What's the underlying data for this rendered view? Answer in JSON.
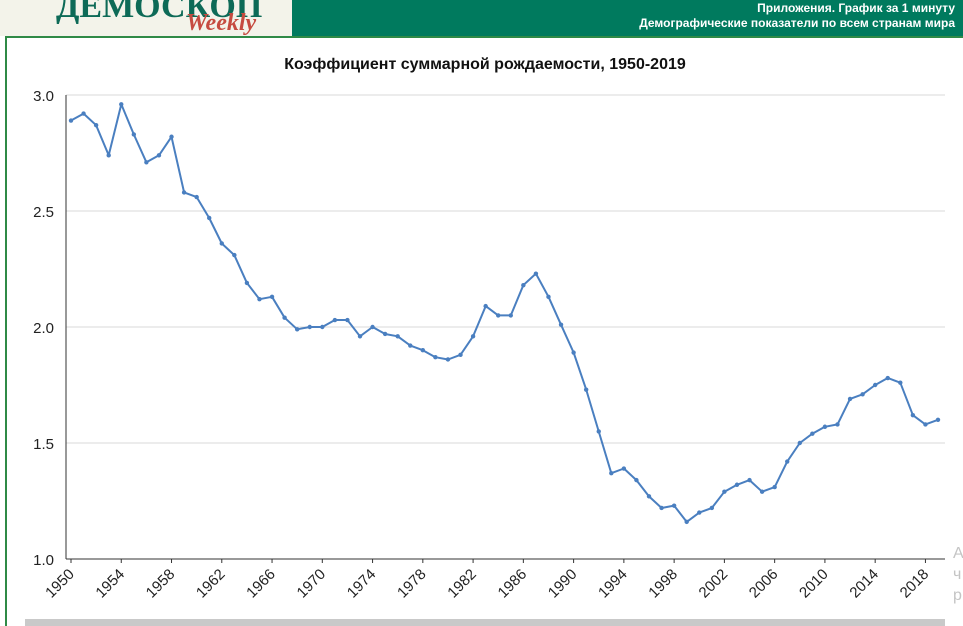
{
  "header": {
    "logo_main": "ДЕМОСКОП",
    "logo_sub": "Weekly",
    "line1": "Приложения. График за 1 минуту",
    "line2": "Демографические показатели по всем странам мира"
  },
  "edge_text": [
    "А",
    "ч",
    "р"
  ],
  "colors": {
    "header_bg": "#007a5e",
    "line": "#4a7fc0",
    "frame_border": "#2f8a46"
  },
  "chart_data": {
    "type": "line",
    "title": "Коэффициент суммарной рождаемости, 1950-2019",
    "xlabel": "",
    "ylabel": "",
    "ylim": [
      1.0,
      3.0
    ],
    "y_ticks": [
      "1.0",
      "1.5",
      "2.0",
      "2.5",
      "3.0"
    ],
    "x_ticks": [
      "1950",
      "1954",
      "1958",
      "1962",
      "1966",
      "1970",
      "1974",
      "1978",
      "1982",
      "1986",
      "1990",
      "1994",
      "1998",
      "2002",
      "2006",
      "2010",
      "2014",
      "2018"
    ],
    "grid": true,
    "legend": "none",
    "x": [
      1950,
      1951,
      1952,
      1953,
      1954,
      1955,
      1956,
      1957,
      1958,
      1959,
      1960,
      1961,
      1962,
      1963,
      1964,
      1965,
      1966,
      1967,
      1968,
      1969,
      1970,
      1971,
      1972,
      1973,
      1974,
      1975,
      1976,
      1977,
      1978,
      1979,
      1980,
      1981,
      1982,
      1983,
      1984,
      1985,
      1986,
      1987,
      1988,
      1989,
      1990,
      1991,
      1992,
      1993,
      1994,
      1995,
      1996,
      1997,
      1998,
      1999,
      2000,
      2001,
      2002,
      2003,
      2004,
      2005,
      2006,
      2007,
      2008,
      2009,
      2010,
      2011,
      2012,
      2013,
      2014,
      2015,
      2016,
      2017,
      2018,
      2019
    ],
    "values": [
      2.89,
      2.92,
      2.87,
      2.74,
      2.96,
      2.83,
      2.71,
      2.74,
      2.82,
      2.58,
      2.56,
      2.47,
      2.36,
      2.31,
      2.19,
      2.12,
      2.13,
      2.04,
      1.99,
      2.0,
      2.0,
      2.03,
      2.03,
      1.96,
      2.0,
      1.97,
      1.96,
      1.92,
      1.9,
      1.87,
      1.86,
      1.88,
      1.96,
      2.09,
      2.05,
      2.05,
      2.18,
      2.23,
      2.13,
      2.01,
      1.89,
      1.73,
      1.55,
      1.37,
      1.39,
      1.34,
      1.27,
      1.22,
      1.23,
      1.16,
      1.2,
      1.22,
      1.29,
      1.32,
      1.34,
      1.29,
      1.31,
      1.42,
      1.5,
      1.54,
      1.57,
      1.58,
      1.69,
      1.71,
      1.75,
      1.78,
      1.76,
      1.62,
      1.58,
      1.6
    ]
  }
}
